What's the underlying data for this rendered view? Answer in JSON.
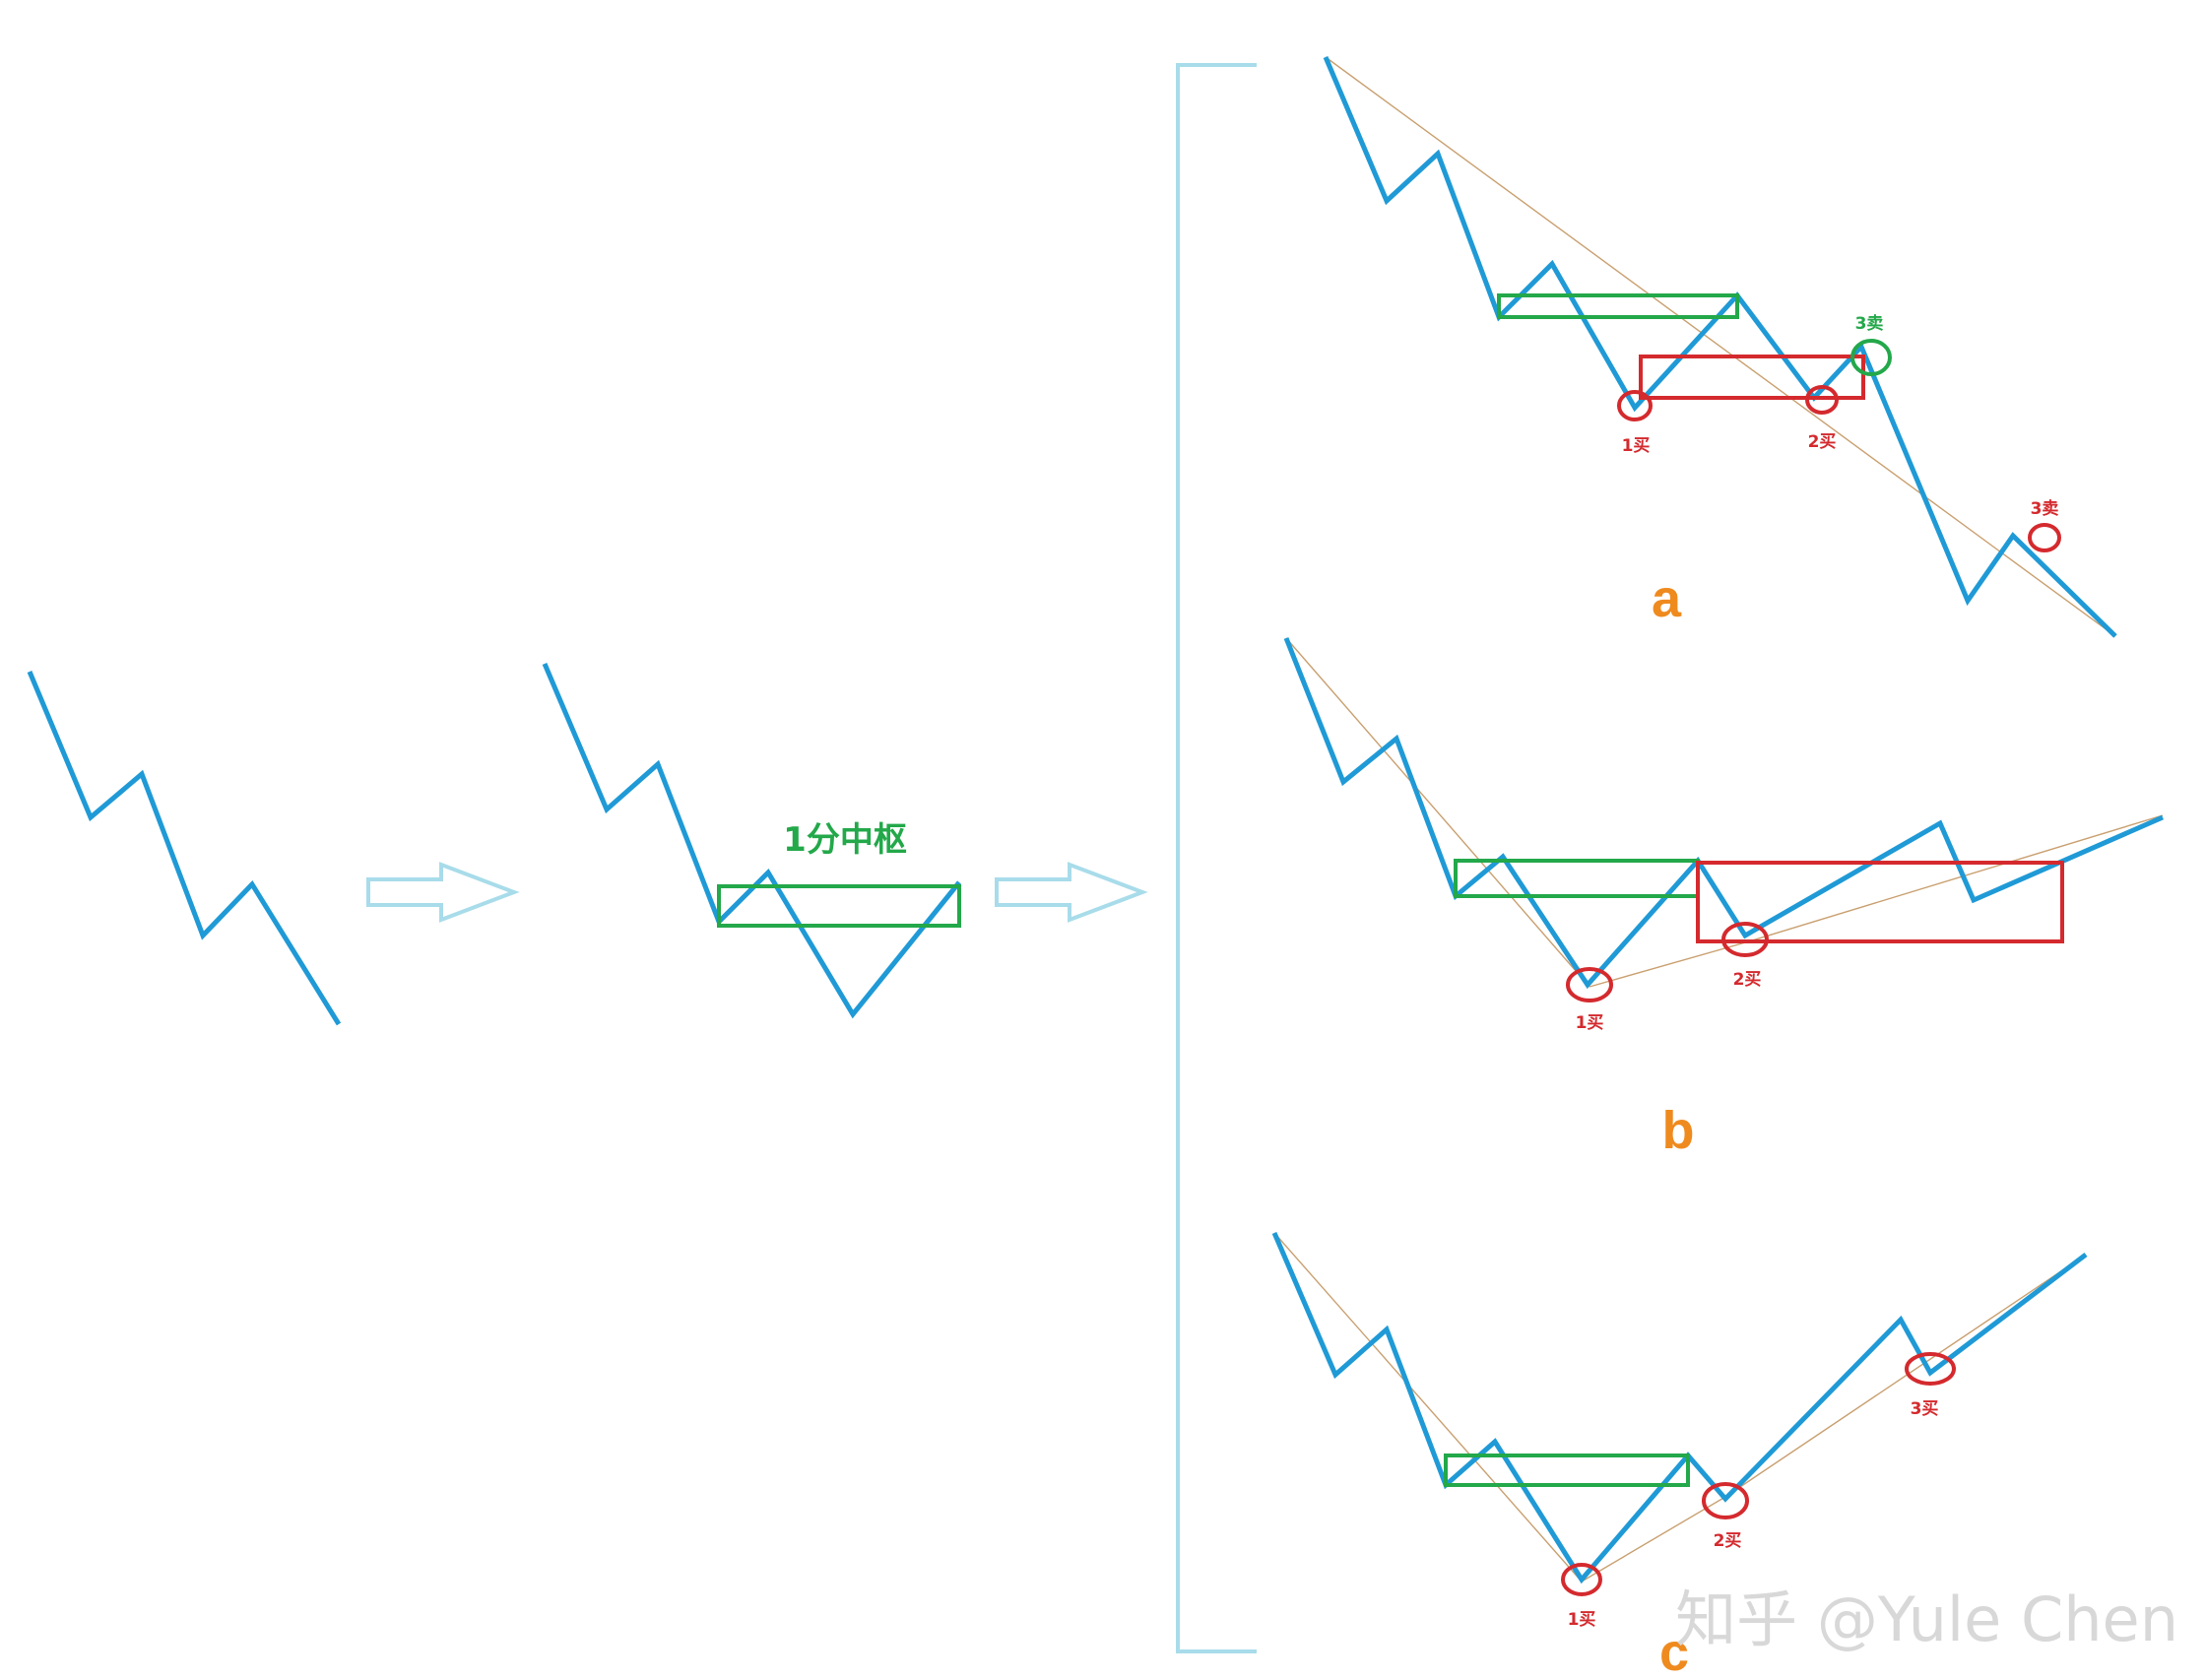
{
  "colors": {
    "wave": "#1f9ad6",
    "center_box": "#23a84a",
    "second_box": "#d42a2e",
    "circle": "#d42a2e",
    "third_sell_circle": "#23a84a",
    "trend_line": "#c9a070",
    "arrow": "#a8dcea",
    "bracket": "#a8dcea",
    "panel_letter": "#ef8a1e",
    "watermark": "#d8d8d8"
  },
  "step2": {
    "label": "1分中枢"
  },
  "panel_a": {
    "letter": "a",
    "first_buy": "1买",
    "second_buy": "2买",
    "third_sell_upper": "3卖",
    "third_sell_lower": "3卖"
  },
  "panel_b": {
    "letter": "b",
    "first_buy": "1买",
    "second_buy": "2买"
  },
  "panel_c": {
    "letter": "c",
    "first_buy": "1买",
    "second_buy": "2买",
    "third_buy": "3买"
  },
  "watermark": {
    "text": "知乎 @Yule Chen"
  }
}
